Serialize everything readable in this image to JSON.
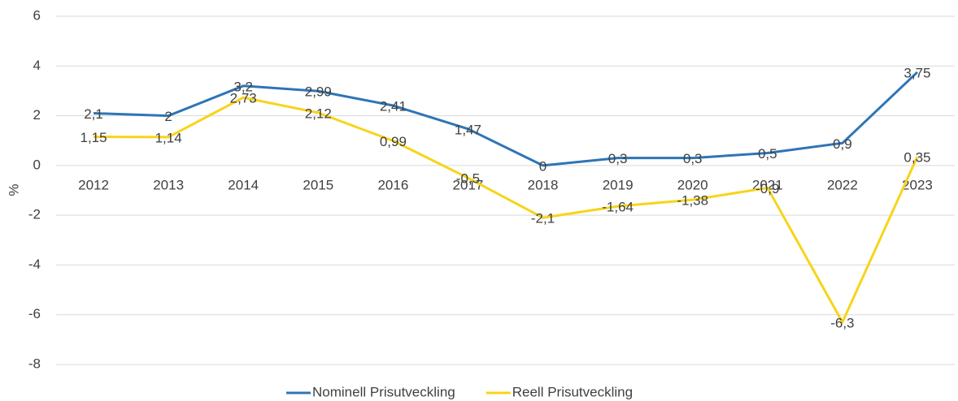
{
  "chart_data": {
    "type": "line",
    "y_label": "%",
    "categories": [
      "2012",
      "2013",
      "2014",
      "2015",
      "2016",
      "2017",
      "2018",
      "2019",
      "2020",
      "2021",
      "2022",
      "2023"
    ],
    "series": [
      {
        "name": "Nominell Prisutveckling",
        "color": "#2e75b6",
        "values": [
          2.1,
          2,
          3.2,
          2.99,
          2.41,
          1.47,
          0,
          0.3,
          0.3,
          0.5,
          0.9,
          3.75
        ],
        "value_labels": [
          "2,1",
          "2",
          "3,2",
          "2,99",
          "2,41",
          "1,47",
          "0",
          "0,3",
          "0,3",
          "0,5",
          "0,9",
          "3,75"
        ]
      },
      {
        "name": "Reell Prisutveckling",
        "color": "#f7d41a",
        "values": [
          1.15,
          1.14,
          2.73,
          2.12,
          0.99,
          -0.5,
          -2.1,
          -1.64,
          -1.38,
          -0.9,
          -6.3,
          0.35
        ],
        "value_labels": [
          "1,15",
          "1,14",
          "2,73",
          "2,12",
          "0,99",
          "-0,5",
          "-2,1",
          "-1,64",
          "-1,38",
          "-0,9",
          "-6,3",
          "0,35"
        ]
      }
    ],
    "ylim": [
      -8,
      6
    ],
    "yticks": [
      -8,
      -6,
      -4,
      -2,
      0,
      2,
      4,
      6
    ],
    "grid": true,
    "legend": "bottom"
  }
}
